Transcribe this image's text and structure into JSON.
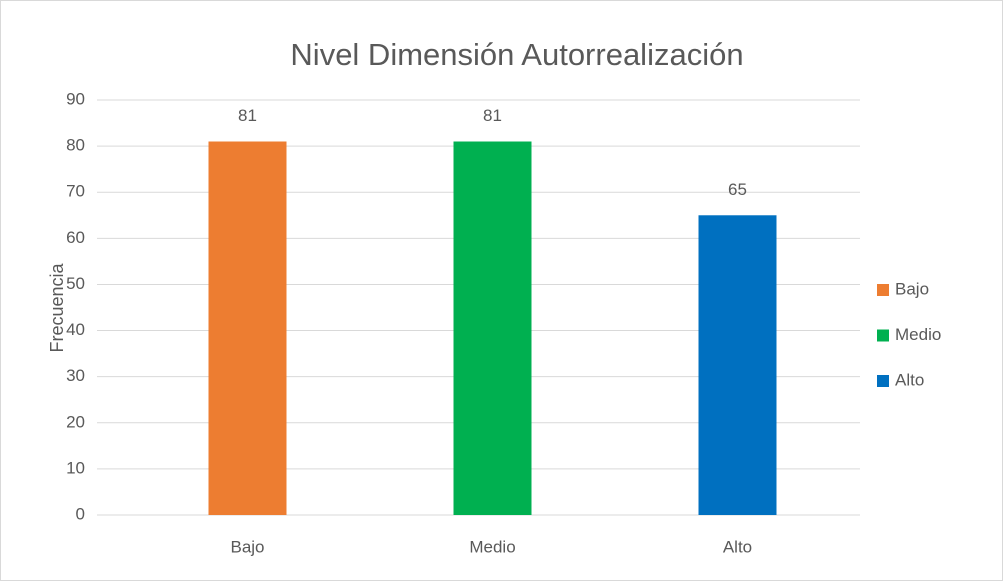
{
  "chart_data": {
    "type": "bar",
    "title": "Nivel Dimensión Autorrealización",
    "y_label": "Frecuencia",
    "categories": [
      "Bajo",
      "Medio",
      "Alto"
    ],
    "values": [
      81,
      81,
      65
    ],
    "colors": [
      "#ed7d31",
      "#00b050",
      "#0070c0"
    ],
    "ylim": [
      0,
      90
    ],
    "yticks": [
      0,
      10,
      20,
      30,
      40,
      50,
      60,
      70,
      80,
      90
    ],
    "grid": true,
    "legend": "right"
  }
}
